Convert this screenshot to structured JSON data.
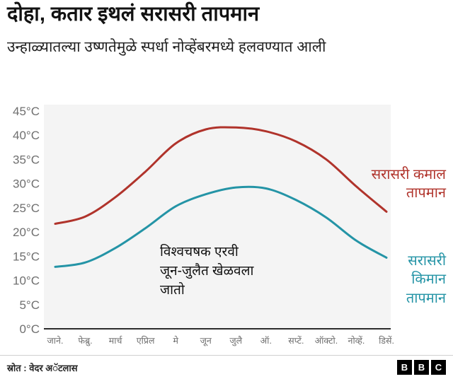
{
  "header": {
    "title": "दोहा, कतार इथलं सरासरी तापमान",
    "subtitle": "उन्हाळ्यातल्या उष्णतेमुळे स्पर्धा नोव्हेंबरमध्ये हलवण्यात आली"
  },
  "chart_data": {
    "type": "line",
    "title": "दोहा, कतार इथलं सरासरी तापमान",
    "categories": [
      "जाने.",
      "फेब्रु.",
      "मार्च",
      "एप्रिल",
      "मे",
      "जून",
      "जुलै",
      "ऑ.",
      "सप्टें.",
      "ऑक्टो.",
      "नोव्हें.",
      "डिसें."
    ],
    "series": [
      {
        "name": "सरासरी कमाल तापमान",
        "color": "#b0332b",
        "values": [
          21.7,
          23.2,
          27.2,
          32.5,
          38.3,
          41.2,
          41.6,
          40.8,
          38.7,
          35.0,
          29.4,
          24.2
        ]
      },
      {
        "name": "सरासरी किमान तापमान",
        "color": "#2494a6",
        "values": [
          12.8,
          13.7,
          16.7,
          20.8,
          25.3,
          27.8,
          29.2,
          29.0,
          26.6,
          23.0,
          18.2,
          14.7
        ]
      }
    ],
    "ylim": [
      0,
      45
    ],
    "ytick_step": 5,
    "ytick_suffix": "°C",
    "grid": false,
    "legend_position": "right",
    "annotation": "विश्वचषक एरवी\nजून-जुलैत खेळवला\nजातो"
  },
  "footer": {
    "source": "स्रोत : वेदर अॅटलास",
    "logo_letters": [
      "B",
      "B",
      "C"
    ]
  },
  "colors": {
    "axis": "#2b2b2b",
    "tick_text": "#6f6f6f",
    "plot_bg": "#f4f4f4",
    "annotation_text": "#111111"
  }
}
